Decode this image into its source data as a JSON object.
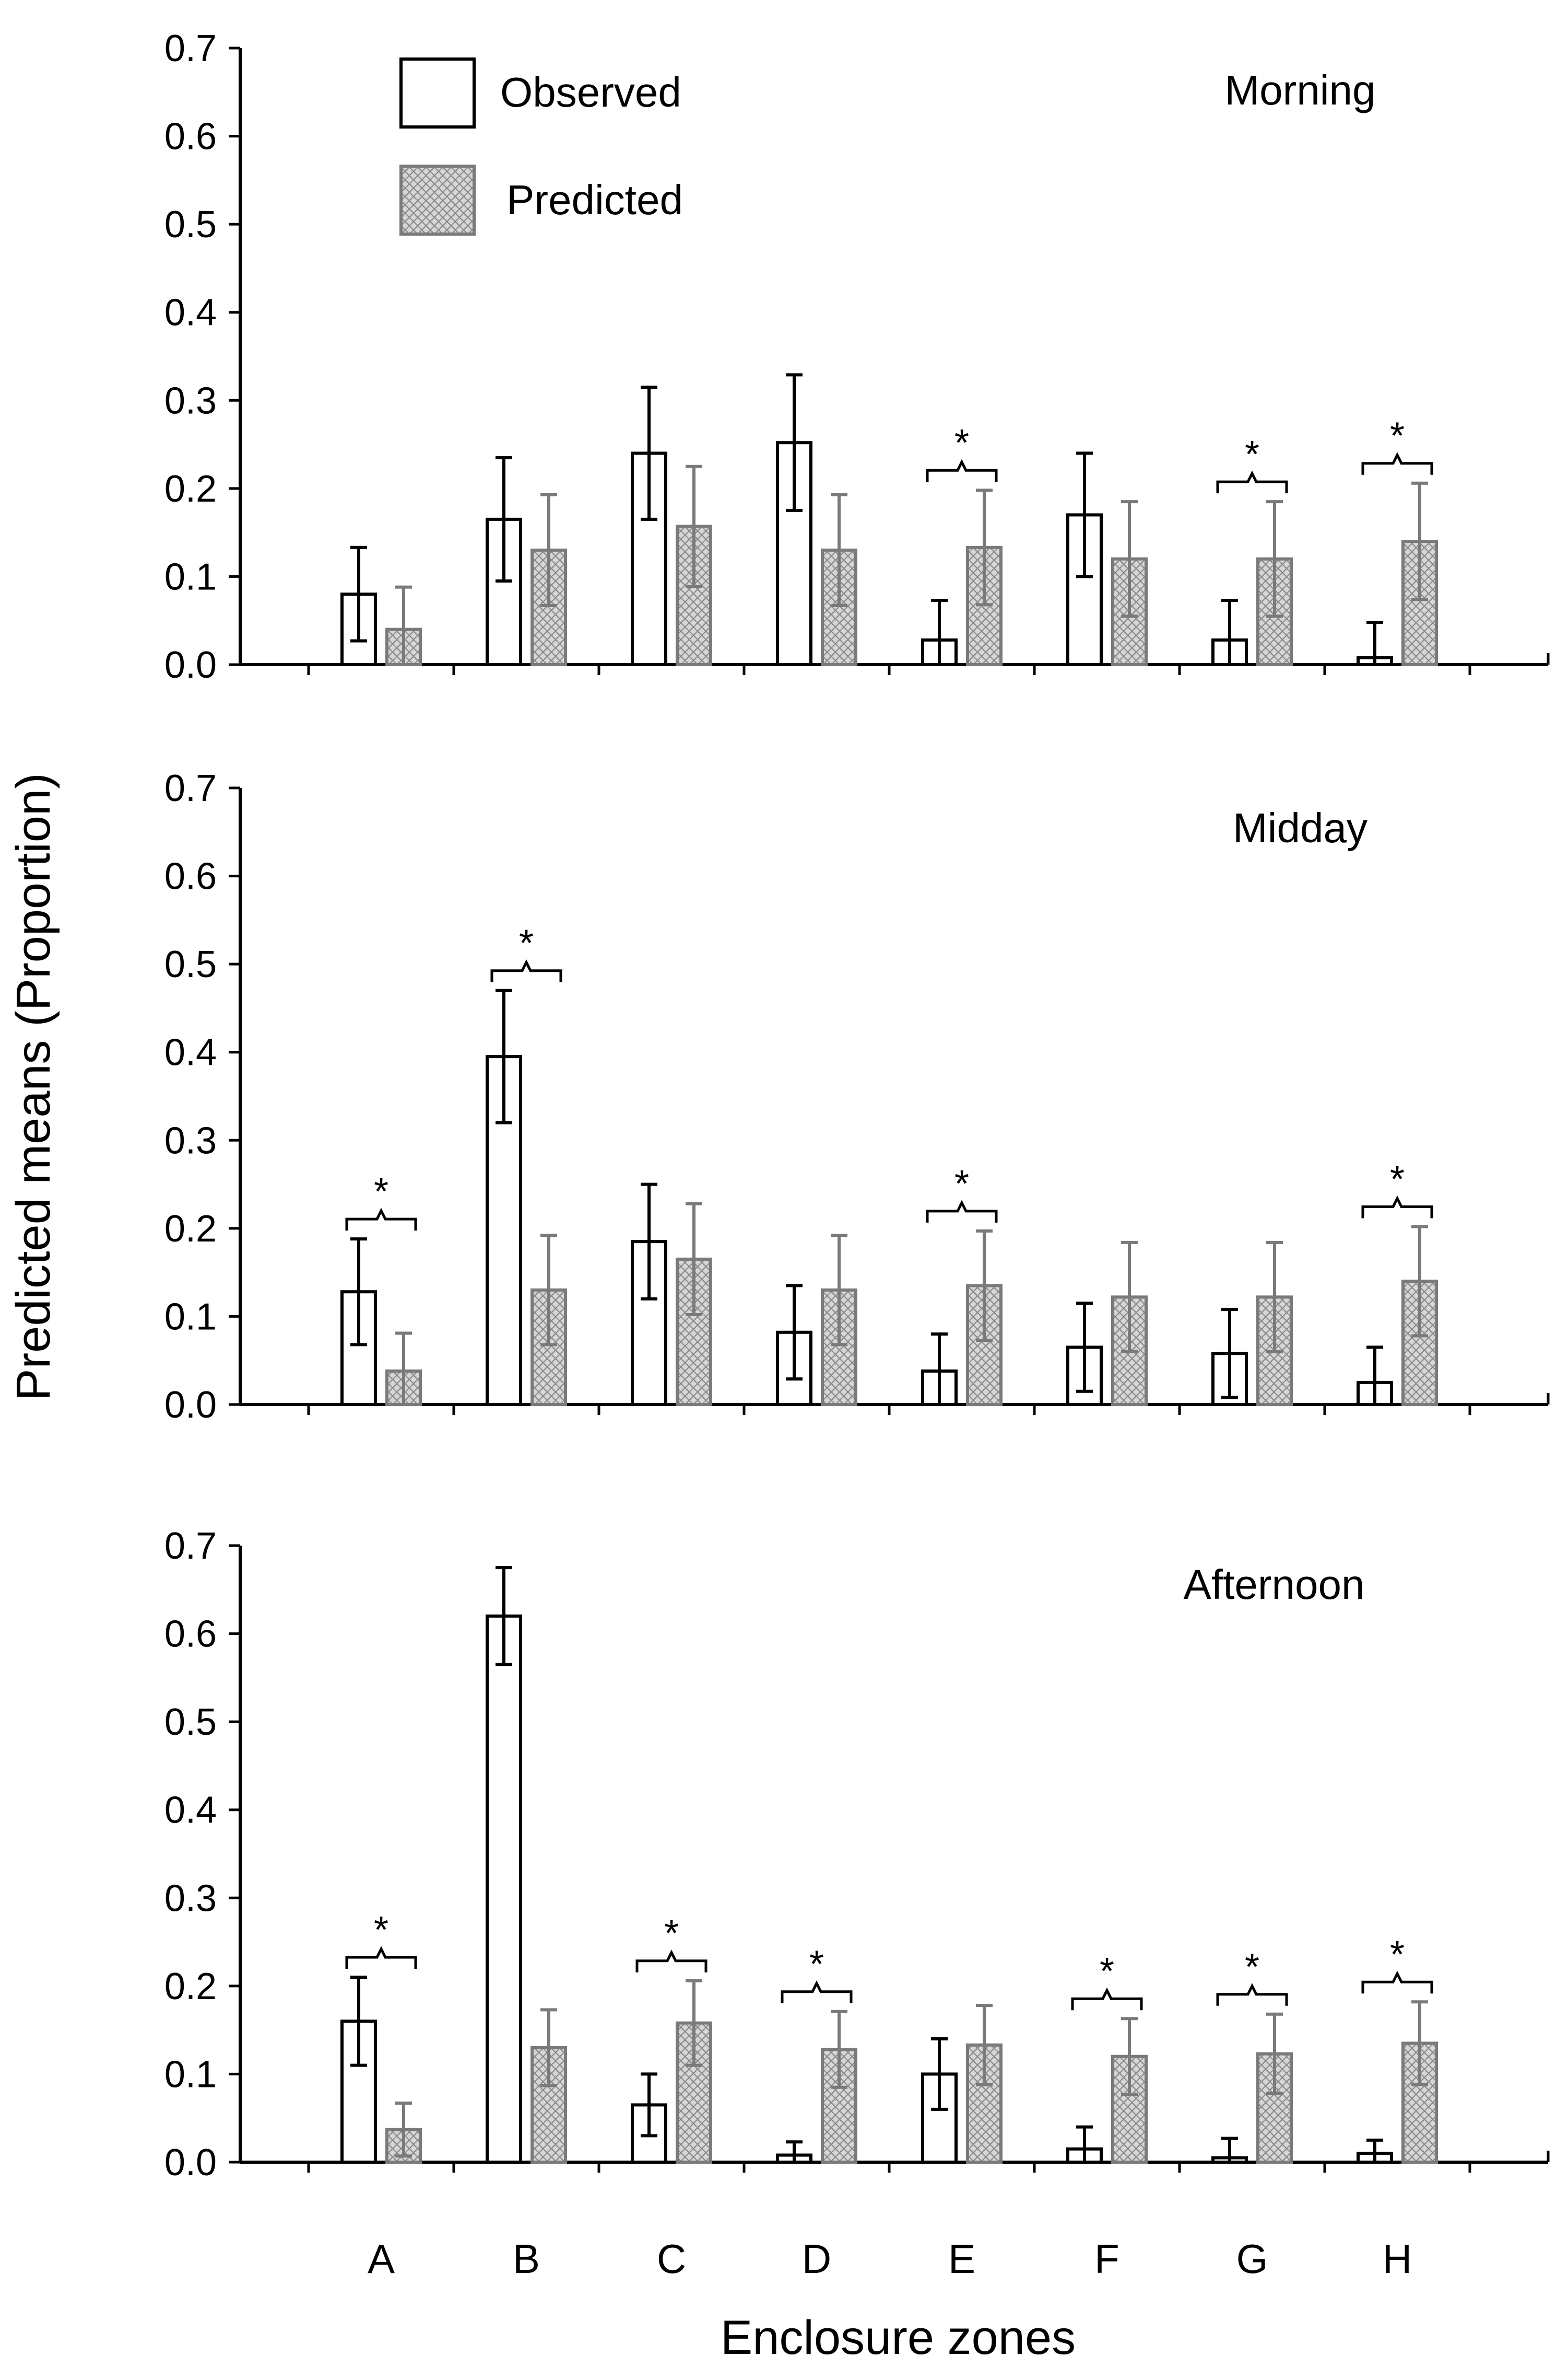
{
  "colors": {
    "observed_stroke": "#000000",
    "observed_fill": "#ffffff",
    "predicted_stroke": "#7a7a7a",
    "predicted_fill": "#d6d6d6",
    "predicted_hatch": "#8a8a8a",
    "axis": "#000000"
  },
  "chart_data": {
    "type": "bar",
    "xlabel": "Enclosure zones",
    "ylabel": "Predicted means (Proportion)",
    "categories": [
      "A",
      "B",
      "C",
      "D",
      "E",
      "F",
      "G",
      "H"
    ],
    "ylim": [
      0,
      0.7
    ],
    "yticks": [
      "0.0",
      "0.1",
      "0.2",
      "0.3",
      "0.4",
      "0.5",
      "0.6",
      "0.7"
    ],
    "legend": {
      "position": "top-left",
      "entries": [
        "Observed",
        "Predicted"
      ]
    },
    "significance_marker": "*",
    "panels": [
      {
        "title": "Morning",
        "series": [
          {
            "name": "Observed",
            "values": [
              0.08,
              0.165,
              0.24,
              0.252,
              0.028,
              0.17,
              0.028,
              0.008
            ],
            "errors": [
              0.053,
              0.07,
              0.075,
              0.077,
              0.045,
              0.07,
              0.045,
              0.04
            ]
          },
          {
            "name": "Predicted",
            "values": [
              0.04,
              0.13,
              0.157,
              0.13,
              0.133,
              0.12,
              0.12,
              0.14
            ],
            "errors": [
              0.048,
              0.063,
              0.068,
              0.063,
              0.065,
              0.065,
              0.065,
              0.066
            ]
          }
        ],
        "significant": [
          false,
          false,
          false,
          false,
          true,
          false,
          true,
          true
        ]
      },
      {
        "title": "Midday",
        "series": [
          {
            "name": "Observed",
            "values": [
              0.128,
              0.395,
              0.185,
              0.082,
              0.038,
              0.065,
              0.058,
              0.025
            ],
            "errors": [
              0.06,
              0.075,
              0.065,
              0.053,
              0.042,
              0.05,
              0.05,
              0.04
            ]
          },
          {
            "name": "Predicted",
            "values": [
              0.038,
              0.13,
              0.165,
              0.13,
              0.135,
              0.122,
              0.122,
              0.14
            ],
            "errors": [
              0.043,
              0.062,
              0.063,
              0.062,
              0.062,
              0.062,
              0.062,
              0.062
            ]
          }
        ],
        "significant": [
          true,
          true,
          false,
          false,
          true,
          false,
          false,
          true
        ]
      },
      {
        "title": "Afternoon",
        "series": [
          {
            "name": "Observed",
            "values": [
              0.16,
              0.62,
              0.065,
              0.008,
              0.1,
              0.015,
              0.005,
              0.01
            ],
            "errors": [
              0.05,
              0.055,
              0.035,
              0.015,
              0.04,
              0.025,
              0.022,
              0.015
            ]
          },
          {
            "name": "Predicted",
            "values": [
              0.037,
              0.13,
              0.158,
              0.128,
              0.133,
              0.12,
              0.123,
              0.135
            ],
            "errors": [
              0.03,
              0.043,
              0.048,
              0.043,
              0.045,
              0.043,
              0.045,
              0.047
            ]
          }
        ],
        "significant": [
          true,
          false,
          true,
          true,
          false,
          true,
          true,
          true
        ]
      }
    ]
  }
}
